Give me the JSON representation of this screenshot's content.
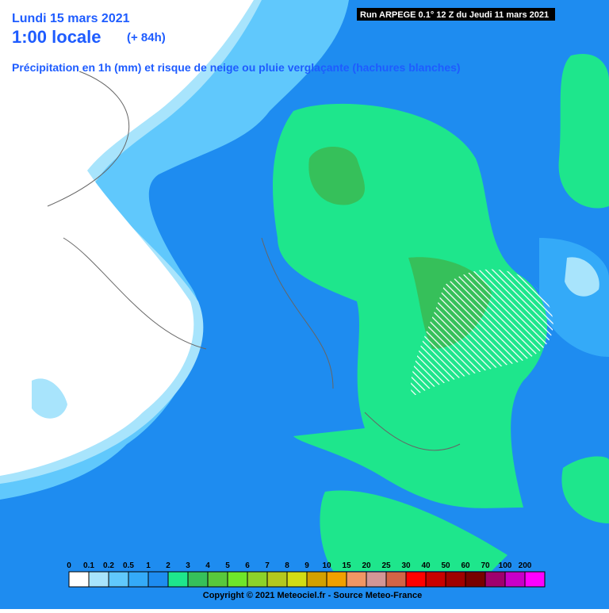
{
  "header": {
    "date": "Lundi 15 mars 2021",
    "time": "1:00 locale",
    "lead": "(+ 84h)",
    "subtitle": "Précipitation en 1h (mm) et risque de neige ou pluie verglaçante (hachures blanches)",
    "run": "Run ARPEGE 0.1° 12 Z du Jeudi 11 mars 2021"
  },
  "legend": [
    {
      "label": "0",
      "color": "#ffffff"
    },
    {
      "label": "0.1",
      "color": "#a8e4fc"
    },
    {
      "label": "0.2",
      "color": "#60c8fc"
    },
    {
      "label": "0.5",
      "color": "#34aaf8"
    },
    {
      "label": "1",
      "color": "#1e8cf0"
    },
    {
      "label": "2",
      "color": "#1ee68c"
    },
    {
      "label": "3",
      "color": "#36c05a"
    },
    {
      "label": "4",
      "color": "#58c83c"
    },
    {
      "label": "5",
      "color": "#6ee62a"
    },
    {
      "label": "6",
      "color": "#8cd22a"
    },
    {
      "label": "7",
      "color": "#b4c81e"
    },
    {
      "label": "8",
      "color": "#d2dc14"
    },
    {
      "label": "9",
      "color": "#d2a000"
    },
    {
      "label": "10",
      "color": "#f0a000"
    },
    {
      "label": "15",
      "color": "#f09664"
    },
    {
      "label": "20",
      "color": "#d29696"
    },
    {
      "label": "25",
      "color": "#d26446"
    },
    {
      "label": "30",
      "color": "#ff0000"
    },
    {
      "label": "40",
      "color": "#c80000"
    },
    {
      "label": "50",
      "color": "#a00000"
    },
    {
      "label": "60",
      "color": "#780000"
    },
    {
      "label": "70",
      "color": "#a0006e"
    },
    {
      "label": "100",
      "color": "#c800c8"
    },
    {
      "label": "200",
      "color": "#ff00ff"
    }
  ],
  "footer": {
    "copyright": "Copyright © 2021 Meteociel.fr - Source Meteo-France"
  }
}
